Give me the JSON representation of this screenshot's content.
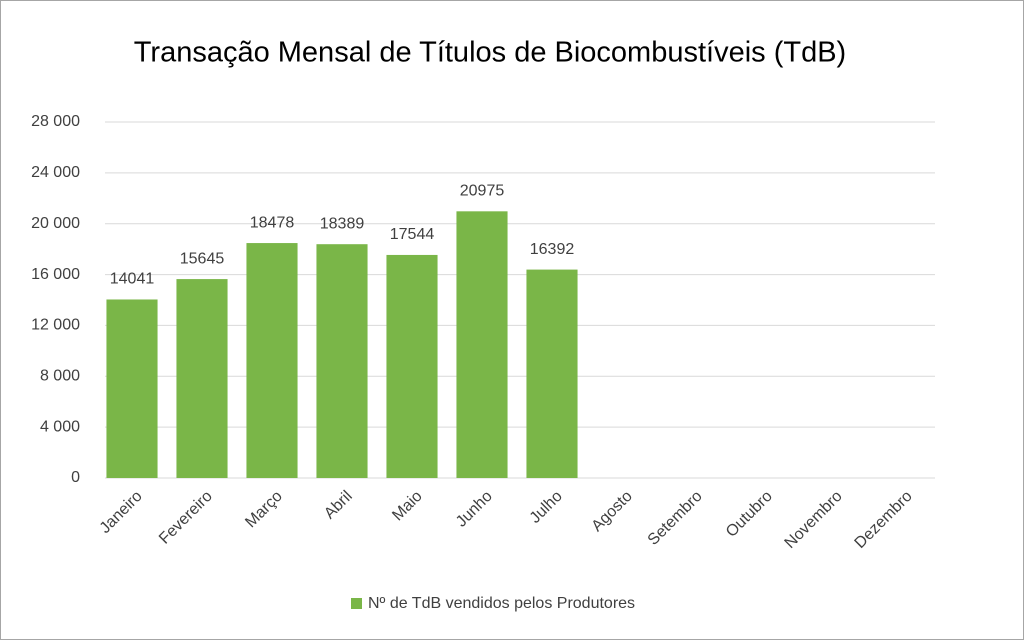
{
  "chart_data": {
    "type": "bar",
    "title": "Transação Mensal de Títulos de Biocombustíveis (TdB)",
    "categories": [
      "Janeiro",
      "Fevereiro",
      "Março",
      "Abril",
      "Maio",
      "Junho",
      "Julho",
      "Agosto",
      "Setembro",
      "Outubro",
      "Novembro",
      "Dezembro"
    ],
    "series": [
      {
        "name": "Nº de TdB vendidos pelos Produtores",
        "color": "#7ab648",
        "values": [
          14041,
          15645,
          18478,
          18389,
          17544,
          20975,
          16392,
          null,
          null,
          null,
          null,
          null
        ]
      }
    ],
    "ylim": [
      0,
      28000
    ],
    "yticks": [
      0,
      {
        "value": 4000,
        "label": "4 000"
      },
      {
        "value": 8000,
        "label": "8 000"
      },
      {
        "value": 12000,
        "label": "12 000"
      },
      {
        "value": 16000,
        "label": "16 000"
      },
      {
        "value": 20000,
        "label": "20 000"
      },
      {
        "value": 24000,
        "label": "24 000"
      },
      {
        "value": 28000,
        "label": "28 000"
      }
    ],
    "grid": true,
    "legend": "bottom"
  }
}
